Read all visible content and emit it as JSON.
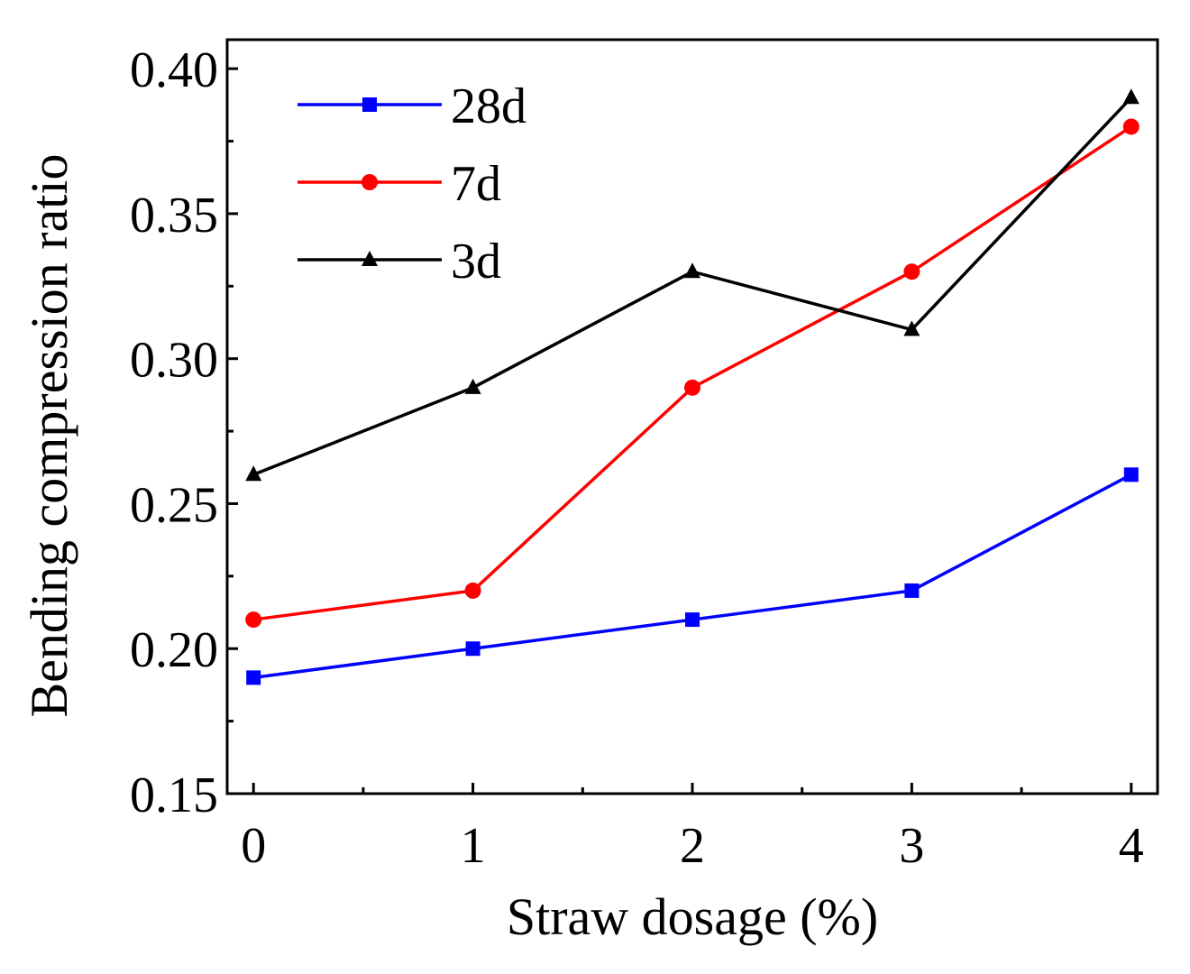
{
  "chart_data": {
    "type": "line",
    "title": "",
    "xlabel": "Straw dosage (%)",
    "ylabel": "Bending compression ratio",
    "x": [
      0,
      1,
      2,
      3,
      4
    ],
    "x_tick_labels": [
      "0",
      "1",
      "2",
      "3",
      "4"
    ],
    "xlim": [
      -0.12,
      4.12
    ],
    "ylim": [
      0.15,
      0.41
    ],
    "y_ticks": [
      0.15,
      0.2,
      0.25,
      0.3,
      0.35,
      0.4
    ],
    "y_tick_labels": [
      "0.15",
      "0.20",
      "0.25",
      "0.30",
      "0.35",
      "0.40"
    ],
    "grid": false,
    "legend_position": "top-left",
    "series": [
      {
        "name": "28d",
        "values": [
          0.19,
          0.2,
          0.21,
          0.22,
          0.26
        ],
        "color": "#0000ff",
        "marker": "square"
      },
      {
        "name": "7d",
        "values": [
          0.21,
          0.22,
          0.29,
          0.33,
          0.38
        ],
        "color": "#ff0000",
        "marker": "circle"
      },
      {
        "name": "3d",
        "values": [
          0.26,
          0.29,
          0.33,
          0.31,
          0.39
        ],
        "color": "#000000",
        "marker": "triangle"
      }
    ]
  }
}
